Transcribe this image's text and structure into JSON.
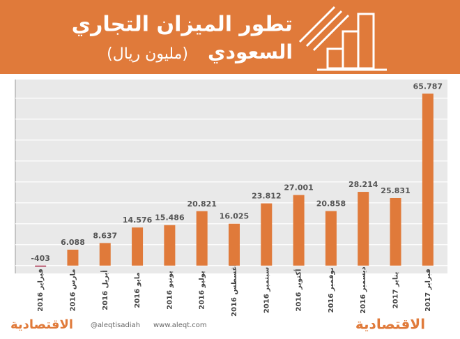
{
  "chart_data": {
    "type": "bar",
    "title": "تطور الميزان التجاري",
    "subtitle": "السعودي",
    "unit_label": "(مليون ريال)",
    "categories": [
      "فبراير 2016",
      "مارس 2016",
      "أبريل 2016",
      "مايو 2016",
      "يونيو 2016",
      "يوليو 2016",
      "أغسطس 2016",
      "سبتمبر 2016",
      "أكتوبر 2016",
      "نوفمبر 2016",
      "ديسمبر 2016",
      "يناير 2017",
      "فبراير 2017"
    ],
    "values": [
      -403,
      6088,
      8637,
      14576,
      15486,
      20821,
      16025,
      23812,
      27001,
      20858,
      28214,
      25831,
      65787
    ],
    "value_labels": [
      "-403",
      "6.088",
      "8.637",
      "14.576",
      "15.486",
      "20.821",
      "16.025",
      "23.812",
      "27.001",
      "20.858",
      "28.214",
      "25.831",
      "65.787"
    ],
    "color": "#e07a3a",
    "negative_color": "#a3203f",
    "ylim": [
      -3000,
      68000
    ],
    "grid": true,
    "footer": {
      "brand": "الاقتصادية",
      "handle": "@aleqtisadiah",
      "site": "www.aleqt.com"
    }
  }
}
